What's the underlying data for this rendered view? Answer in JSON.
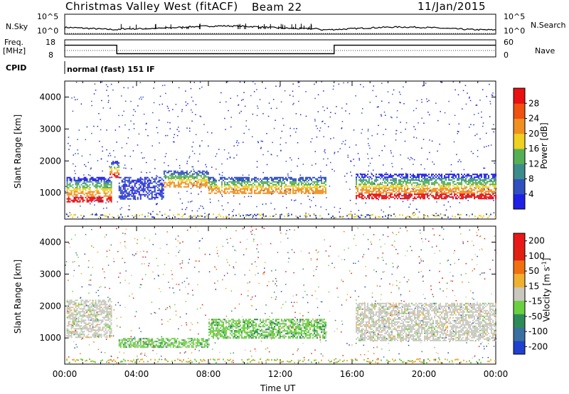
{
  "header": {
    "title": "Christmas Valley West (fitACF)",
    "beam": "Beam 22",
    "date": "11/Jan/2015"
  },
  "panels": {
    "nsky": {
      "label": "N.Sky",
      "tick_top": "10^5",
      "tick_bot": "10^0",
      "right_label": "N.Search",
      "right_tick_top": "10^5",
      "right_tick_bot": "10^0"
    },
    "freq": {
      "label": "Freq.",
      "unit": "[MHz]",
      "tick_top": "18",
      "tick_bot": "8",
      "right_label": "Nave",
      "right_tick_top": "60",
      "right_tick_bot": "0"
    },
    "cpid": {
      "label": "CPID",
      "mode": "normal (fast) 151 IF"
    }
  },
  "chart_data": [
    {
      "type": "heatmap",
      "name": "power",
      "ylabel": "Slant Range [km]",
      "yticks": [
        1000,
        2000,
        3000,
        4000
      ],
      "ylim": [
        180,
        4500
      ],
      "xlim": [
        0,
        24
      ],
      "colorbar": {
        "label": "Power [dB]",
        "ticks": [
          4,
          8,
          12,
          16,
          20,
          24,
          28
        ],
        "range": [
          0,
          32
        ],
        "colors": [
          "#1f1fe6",
          "#3050c0",
          "#3d8c8c",
          "#55b055",
          "#f0d020",
          "#f09020",
          "#f05010",
          "#e81010"
        ]
      },
      "bands": [
        {
          "x": [
            0.1,
            2.6
          ],
          "y": [
            700,
            1500
          ],
          "level": "strong"
        },
        {
          "x": [
            2.5,
            3.0
          ],
          "y": [
            1500,
            2000
          ],
          "level": "strong"
        },
        {
          "x": [
            3.0,
            5.5
          ],
          "y": [
            800,
            1500
          ],
          "level": "weak"
        },
        {
          "x": [
            5.5,
            8.0
          ],
          "y": [
            1200,
            1700
          ],
          "level": "medium"
        },
        {
          "x": [
            8.0,
            14.5
          ],
          "y": [
            1000,
            1500
          ],
          "level": "medium"
        },
        {
          "x": [
            16.2,
            24.0
          ],
          "y": [
            800,
            1600
          ],
          "level": "strong"
        }
      ]
    },
    {
      "type": "heatmap",
      "name": "velocity",
      "ylabel": "Slant Range [km]",
      "xlabel": "Time UT",
      "xticks": [
        "00:00",
        "04:00",
        "08:00",
        "12:00",
        "16:00",
        "20:00",
        "00:00"
      ],
      "yticks": [
        1000,
        2000,
        3000,
        4000
      ],
      "ylim": [
        180,
        4500
      ],
      "xlim": [
        0,
        24
      ],
      "colorbar": {
        "label": "Velocity [m s",
        "label_sup": "-1",
        "label_end": "]",
        "ticks": [
          "200",
          "100",
          "50",
          "15",
          "-15",
          "-50",
          "-100",
          "-200"
        ],
        "colors": [
          "#2040d0",
          "#3a70a0",
          "#2e8b57",
          "#6ad040",
          "#c8c8c0",
          "#f0b030",
          "#f07010",
          "#e02010",
          "#e81818"
        ]
      },
      "bands": [
        {
          "x": [
            0.1,
            2.6
          ],
          "y": [
            1000,
            2200
          ],
          "level": "gray"
        },
        {
          "x": [
            3.0,
            8.0
          ],
          "y": [
            700,
            1000
          ],
          "level": "green"
        },
        {
          "x": [
            8.0,
            14.5
          ],
          "y": [
            1000,
            1600
          ],
          "level": "green"
        },
        {
          "x": [
            16.2,
            24.0
          ],
          "y": [
            900,
            2100
          ],
          "level": "gray"
        }
      ]
    },
    {
      "type": "line",
      "name": "frequency",
      "x": [
        0,
        2.9,
        2.9,
        15.0,
        15.0,
        24
      ],
      "y": [
        15,
        15,
        9.6,
        9.6,
        15,
        15
      ],
      "ylim": [
        8,
        18
      ]
    }
  ]
}
